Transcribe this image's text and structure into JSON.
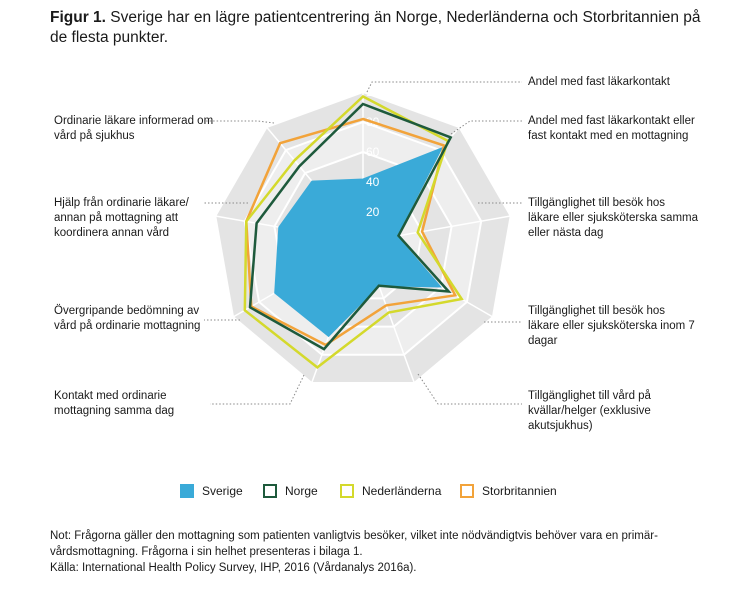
{
  "title": {
    "prefix": "Figur 1.",
    "text": "Sverige har en lägre patientcentrering än Norge, Nederländerna och Storbritannien på de flesta punkter."
  },
  "colors": {
    "sverige": "#3aaad8",
    "norge": "#1e5a3c",
    "nederlanderna": "#d4d92c",
    "storbritannien": "#f2a33a"
  },
  "chart_data": {
    "type": "radar",
    "title": "Sverige har en lägre patientcentrering än Norge, Nederländerna och Storbritannien på de flesta punkter.",
    "axes": [
      "Andel med fast läkarkontakt",
      "Andel med fast läkarkontakt eller fast kontakt med en mottagning",
      "Tillgänglighet till besök hos läkare eller sjuksköterska samma eller nästa dag",
      "Tillgänglighet till besök hos läkare eller sjuksköterska inom 7 dagar",
      "Tillgänglighet till vård på kvällar/helger (exklusive akutsjukhus)",
      "Kontakt med ordinarie mottagning samma dag",
      "Övergripande bedömning av vård på ordinarie mottagning",
      "Hjälp från ordinarie läkare/ annan på mottagning att koordinera annan vård",
      "Ordinarie läkare informerad om vård på sjukhus"
    ],
    "ticks": [
      20,
      40,
      60,
      80,
      100
    ],
    "range": [
      0,
      100
    ],
    "series": [
      {
        "name": "Sverige",
        "values": [
          42,
          82,
          23,
          60,
          31,
          67,
          68,
          57,
          53
        ]
      },
      {
        "name": "Norge",
        "values": [
          92,
          91,
          24,
          66,
          31,
          76,
          87,
          72,
          66
        ]
      },
      {
        "name": "Nederländerna",
        "values": [
          97,
          88,
          37,
          76,
          50,
          89,
          91,
          79,
          71
        ]
      },
      {
        "name": "Storbritannien",
        "values": [
          82,
          84,
          40,
          71,
          45,
          73,
          86,
          79,
          86
        ]
      }
    ]
  },
  "axis_labels": [
    "Andel med fast läkarkontakt",
    "Andel med fast läkarkontakt eller fast kontakt med en mottagning",
    "Tillgänglighet till besök hos läkare eller sjuksköterska samma eller nästa dag",
    "Tillgänglighet till besök hos läkare eller sjuksköterska inom 7 dagar",
    "Tillgänglighet till vård på kvällar/helger (exklusive akutsjukhus)",
    "Kontakt med ordinarie mottagning samma dag",
    "Övergripande bedömning av vård på ordinarie mottagning",
    "Hjälp från ordinarie läkare/ annan på mottagning att koordinera annan vård",
    "Ordinarie läkare informerad om vård på sjukhus"
  ],
  "legend": [
    "Sverige",
    "Norge",
    "Nederländerna",
    "Storbritannien"
  ],
  "note": {
    "line1": "Not: Frågorna gäller den mottagning som patienten vanligtvis besöker, vilket inte nödvändigtvis behöver vara en primär-",
    "line2": "vårdsmottagning. Frågorna i sin helhet presenteras i bilaga 1.",
    "line3": "Källa: International Health Policy Survey, IHP, 2016 (Vårdanalys 2016a)."
  }
}
